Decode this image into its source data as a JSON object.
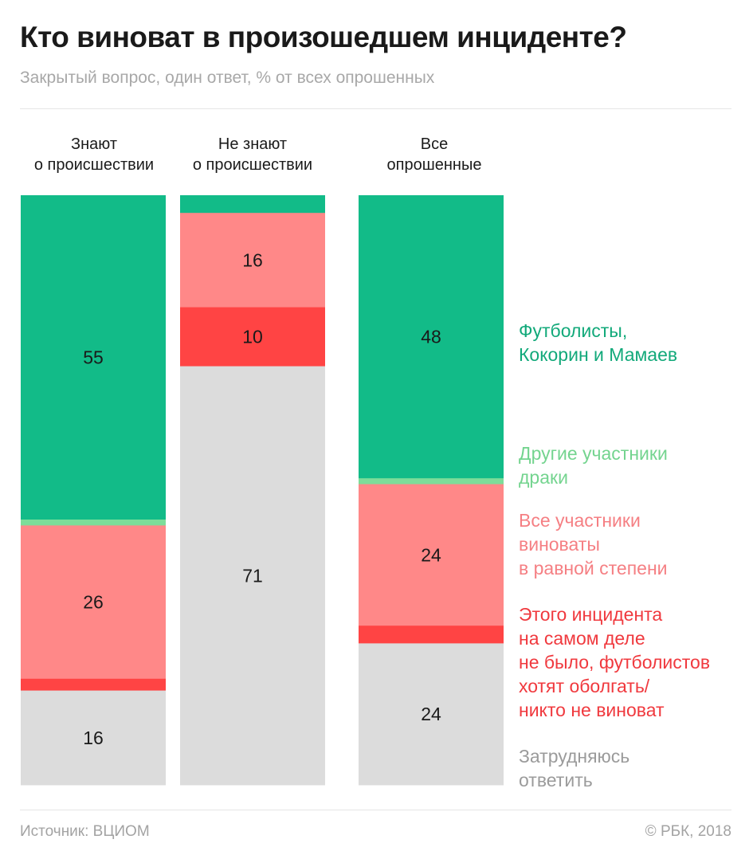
{
  "header": {
    "title": "Кто виноват в произошедшем инциденте?",
    "subtitle": "Закрытый вопрос, один ответ, % от всех опрошенных"
  },
  "footer": {
    "source": "Источник: ВЦИОМ",
    "copyright": "© РБК, 2018"
  },
  "chart_data": {
    "type": "bar",
    "stacked": true,
    "orientation": "vertical",
    "title": "Кто виноват в произошедшем инциденте?",
    "subtitle": "Закрытый вопрос, один ответ, % от всех опрошенных",
    "unit": "%",
    "ylim": [
      0,
      100
    ],
    "grid": false,
    "legend_position": "right",
    "categories": [
      "Знают\nо происшествии",
      "Не знают\nо происшествии",
      "Все\nопрошенные"
    ],
    "series": [
      {
        "name": "Футболисты,\nКокорин и Мамаев",
        "color": "#12bb88",
        "legend_color": "#12a97a",
        "values": [
          55,
          3,
          48
        ],
        "labels": [
          "55",
          "",
          "48"
        ]
      },
      {
        "name": "Другие участники\nдраки",
        "color": "#7ddd99",
        "legend_color": "#74d48f",
        "values": [
          1,
          0,
          1
        ],
        "labels": [
          "",
          "",
          ""
        ]
      },
      {
        "name": "Все участники\nвиноваты\nв равной степени",
        "color": "#ff8888",
        "legend_color": "#f57f83",
        "values": [
          26,
          16,
          24
        ],
        "labels": [
          "26",
          "16",
          "24"
        ]
      },
      {
        "name": "Этого инцидента\nна самом деле\nне было, футболистов\nхотят оболгать/\nникто не виноват",
        "color": "#ff4444",
        "legend_color": "#f0393e",
        "values": [
          2,
          10,
          3
        ],
        "labels": [
          "",
          "10",
          ""
        ]
      },
      {
        "name": "Затрудняюсь\nответить",
        "color": "#dcdcdc",
        "legend_color": "#9b9b9b",
        "values": [
          16,
          71,
          24
        ],
        "labels": [
          "16",
          "71",
          "24"
        ]
      }
    ],
    "source": "Источник: ВЦИОМ",
    "credit": "© РБК, 2018"
  }
}
